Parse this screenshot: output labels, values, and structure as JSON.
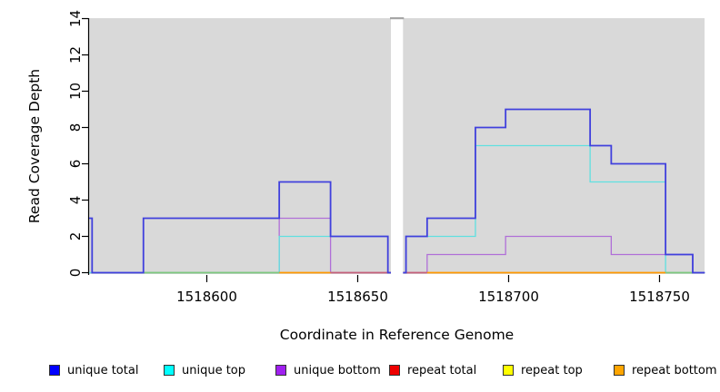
{
  "chart_data": {
    "type": "line",
    "subtype": "step-function-coverage-plot",
    "title": "",
    "xlabel": "Coordinate in Reference Genome",
    "ylabel": "Read Coverage Depth",
    "xlim": [
      1518561,
      1518765
    ],
    "ylim": [
      0,
      14
    ],
    "x_ticks": [
      1518600,
      1518650,
      1518700,
      1518750
    ],
    "y_ticks": [
      0,
      2,
      4,
      6,
      8,
      10,
      12,
      14
    ],
    "grid": "off",
    "panel_bg": "#d9d9d9",
    "gap_region": {
      "x_start": 1518661,
      "x_end": 1518665,
      "note": "white vertical band with gray cap at top"
    },
    "series": [
      {
        "name": "unique total",
        "line_color": "#4040dd",
        "legend_color": "#0000ff",
        "line_width": 1.8,
        "steps": [
          [
            1518561,
            3
          ],
          [
            1518562,
            0
          ],
          [
            1518579,
            3
          ],
          [
            1518624,
            5
          ],
          [
            1518641,
            2
          ],
          [
            1518660,
            0
          ],
          [
            1518666,
            2
          ],
          [
            1518673,
            3
          ],
          [
            1518689,
            8
          ],
          [
            1518699,
            9
          ],
          [
            1518727,
            7
          ],
          [
            1518734,
            6
          ],
          [
            1518752,
            1
          ],
          [
            1518761,
            0
          ]
        ]
      },
      {
        "name": "unique top",
        "line_color": "#5fe0e0",
        "legend_color": "#00ffff",
        "line_width": 1.3,
        "steps": [
          [
            1518561,
            0
          ],
          [
            1518624,
            2
          ],
          [
            1518660,
            0
          ],
          [
            1518666,
            2
          ],
          [
            1518689,
            7
          ],
          [
            1518727,
            5
          ],
          [
            1518752,
            0
          ]
        ]
      },
      {
        "name": "unique bottom",
        "line_color": "#b06fd8",
        "legend_color": "#a020f0",
        "line_width": 1.3,
        "steps": [
          [
            1518561,
            0
          ],
          [
            1518624,
            3
          ],
          [
            1518641,
            0
          ],
          [
            1518673,
            1
          ],
          [
            1518699,
            2
          ],
          [
            1518734,
            1
          ],
          [
            1518761,
            0
          ]
        ]
      },
      {
        "name": "repeat total",
        "line_color": "#c4607a",
        "legend_color": "#ee0000",
        "line_width": 1.6,
        "steps": [
          [
            1518561,
            0
          ]
        ]
      },
      {
        "name": "repeat top",
        "line_color": "#7dc87d",
        "legend_color": "#ffff00",
        "line_width": 1.4,
        "steps": [
          [
            1518561,
            0
          ]
        ]
      },
      {
        "name": "repeat bottom",
        "line_color": "#ff9800",
        "legend_color": "#ffa500",
        "line_width": 1.8,
        "steps": [
          [
            1518561,
            0
          ]
        ]
      }
    ],
    "zero_line_segments": [
      {
        "x1": 1518579,
        "x2": 1518624,
        "color": "#7dc87d"
      },
      {
        "x1": 1518624,
        "x2": 1518641,
        "color": "#ff9800"
      },
      {
        "x1": 1518641,
        "x2": 1518661,
        "color": "#c4607a"
      },
      {
        "x1": 1518665,
        "x2": 1518673,
        "color": "#c4607a"
      },
      {
        "x1": 1518673,
        "x2": 1518752,
        "color": "#ff9800"
      },
      {
        "x1": 1518752,
        "x2": 1518761,
        "color": "#7dc87d"
      }
    ],
    "legend": [
      {
        "label": "unique total",
        "color": "#0000ff"
      },
      {
        "label": "unique top",
        "color": "#00ffff"
      },
      {
        "label": "unique bottom",
        "color": "#a020f0"
      },
      {
        "label": "repeat total",
        "color": "#ee0000"
      },
      {
        "label": "repeat top",
        "color": "#ffff00"
      },
      {
        "label": "repeat bottom",
        "color": "#ffa500"
      }
    ],
    "legend_position": "bottom"
  }
}
